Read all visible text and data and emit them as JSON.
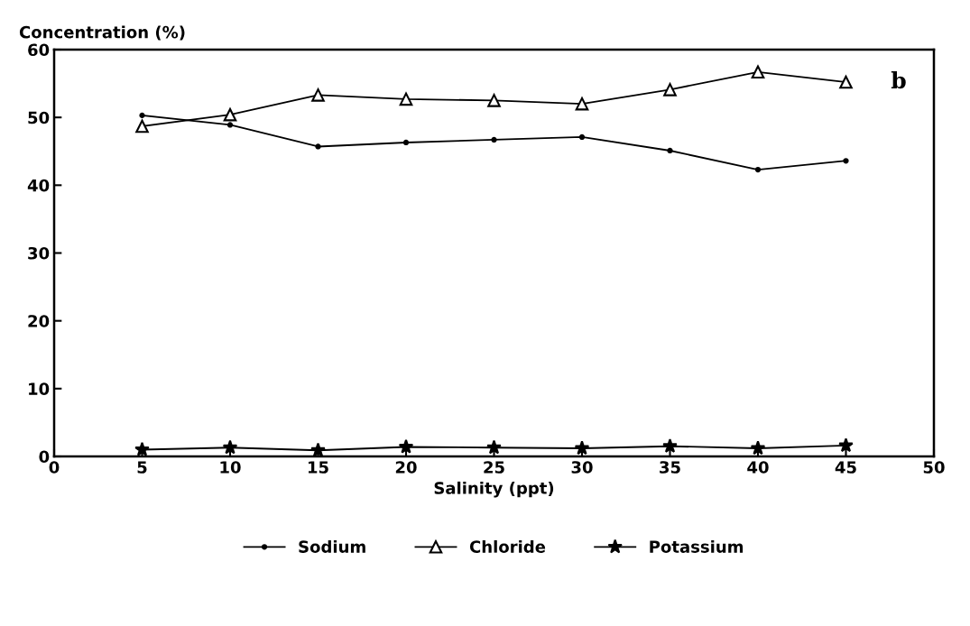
{
  "chart_data": {
    "type": "line",
    "xlabel": "Salinity (ppt)",
    "ylabel": "Concentration (%)",
    "x": [
      5,
      10,
      15,
      20,
      25,
      30,
      35,
      40,
      45
    ],
    "series": [
      {
        "name": "Sodium",
        "color": "#000000",
        "marker": "circle",
        "values": [
          50.3,
          48.9,
          45.7,
          46.3,
          46.7,
          47.1,
          45.1,
          42.3,
          43.6
        ]
      },
      {
        "name": "Chloride",
        "color": "#000000",
        "marker": "triangle",
        "values": [
          48.7,
          50.4,
          53.3,
          52.7,
          52.5,
          52.0,
          54.1,
          56.7,
          55.2
        ]
      },
      {
        "name": "Potassium",
        "color": "#000000",
        "marker": "star",
        "values": [
          1.0,
          1.3,
          0.9,
          1.4,
          1.3,
          1.2,
          1.5,
          1.2,
          1.6
        ]
      }
    ],
    "xlim": [
      0,
      50
    ],
    "xticks": [
      0,
      5,
      10,
      15,
      20,
      25,
      30,
      35,
      40,
      45,
      50
    ],
    "ylim": [
      0,
      60
    ],
    "yticks": [
      0,
      10,
      20,
      30,
      40,
      50,
      60
    ],
    "annotations": [
      "b"
    ],
    "grid": false,
    "legend": "bottom",
    "line_style": "solid"
  }
}
